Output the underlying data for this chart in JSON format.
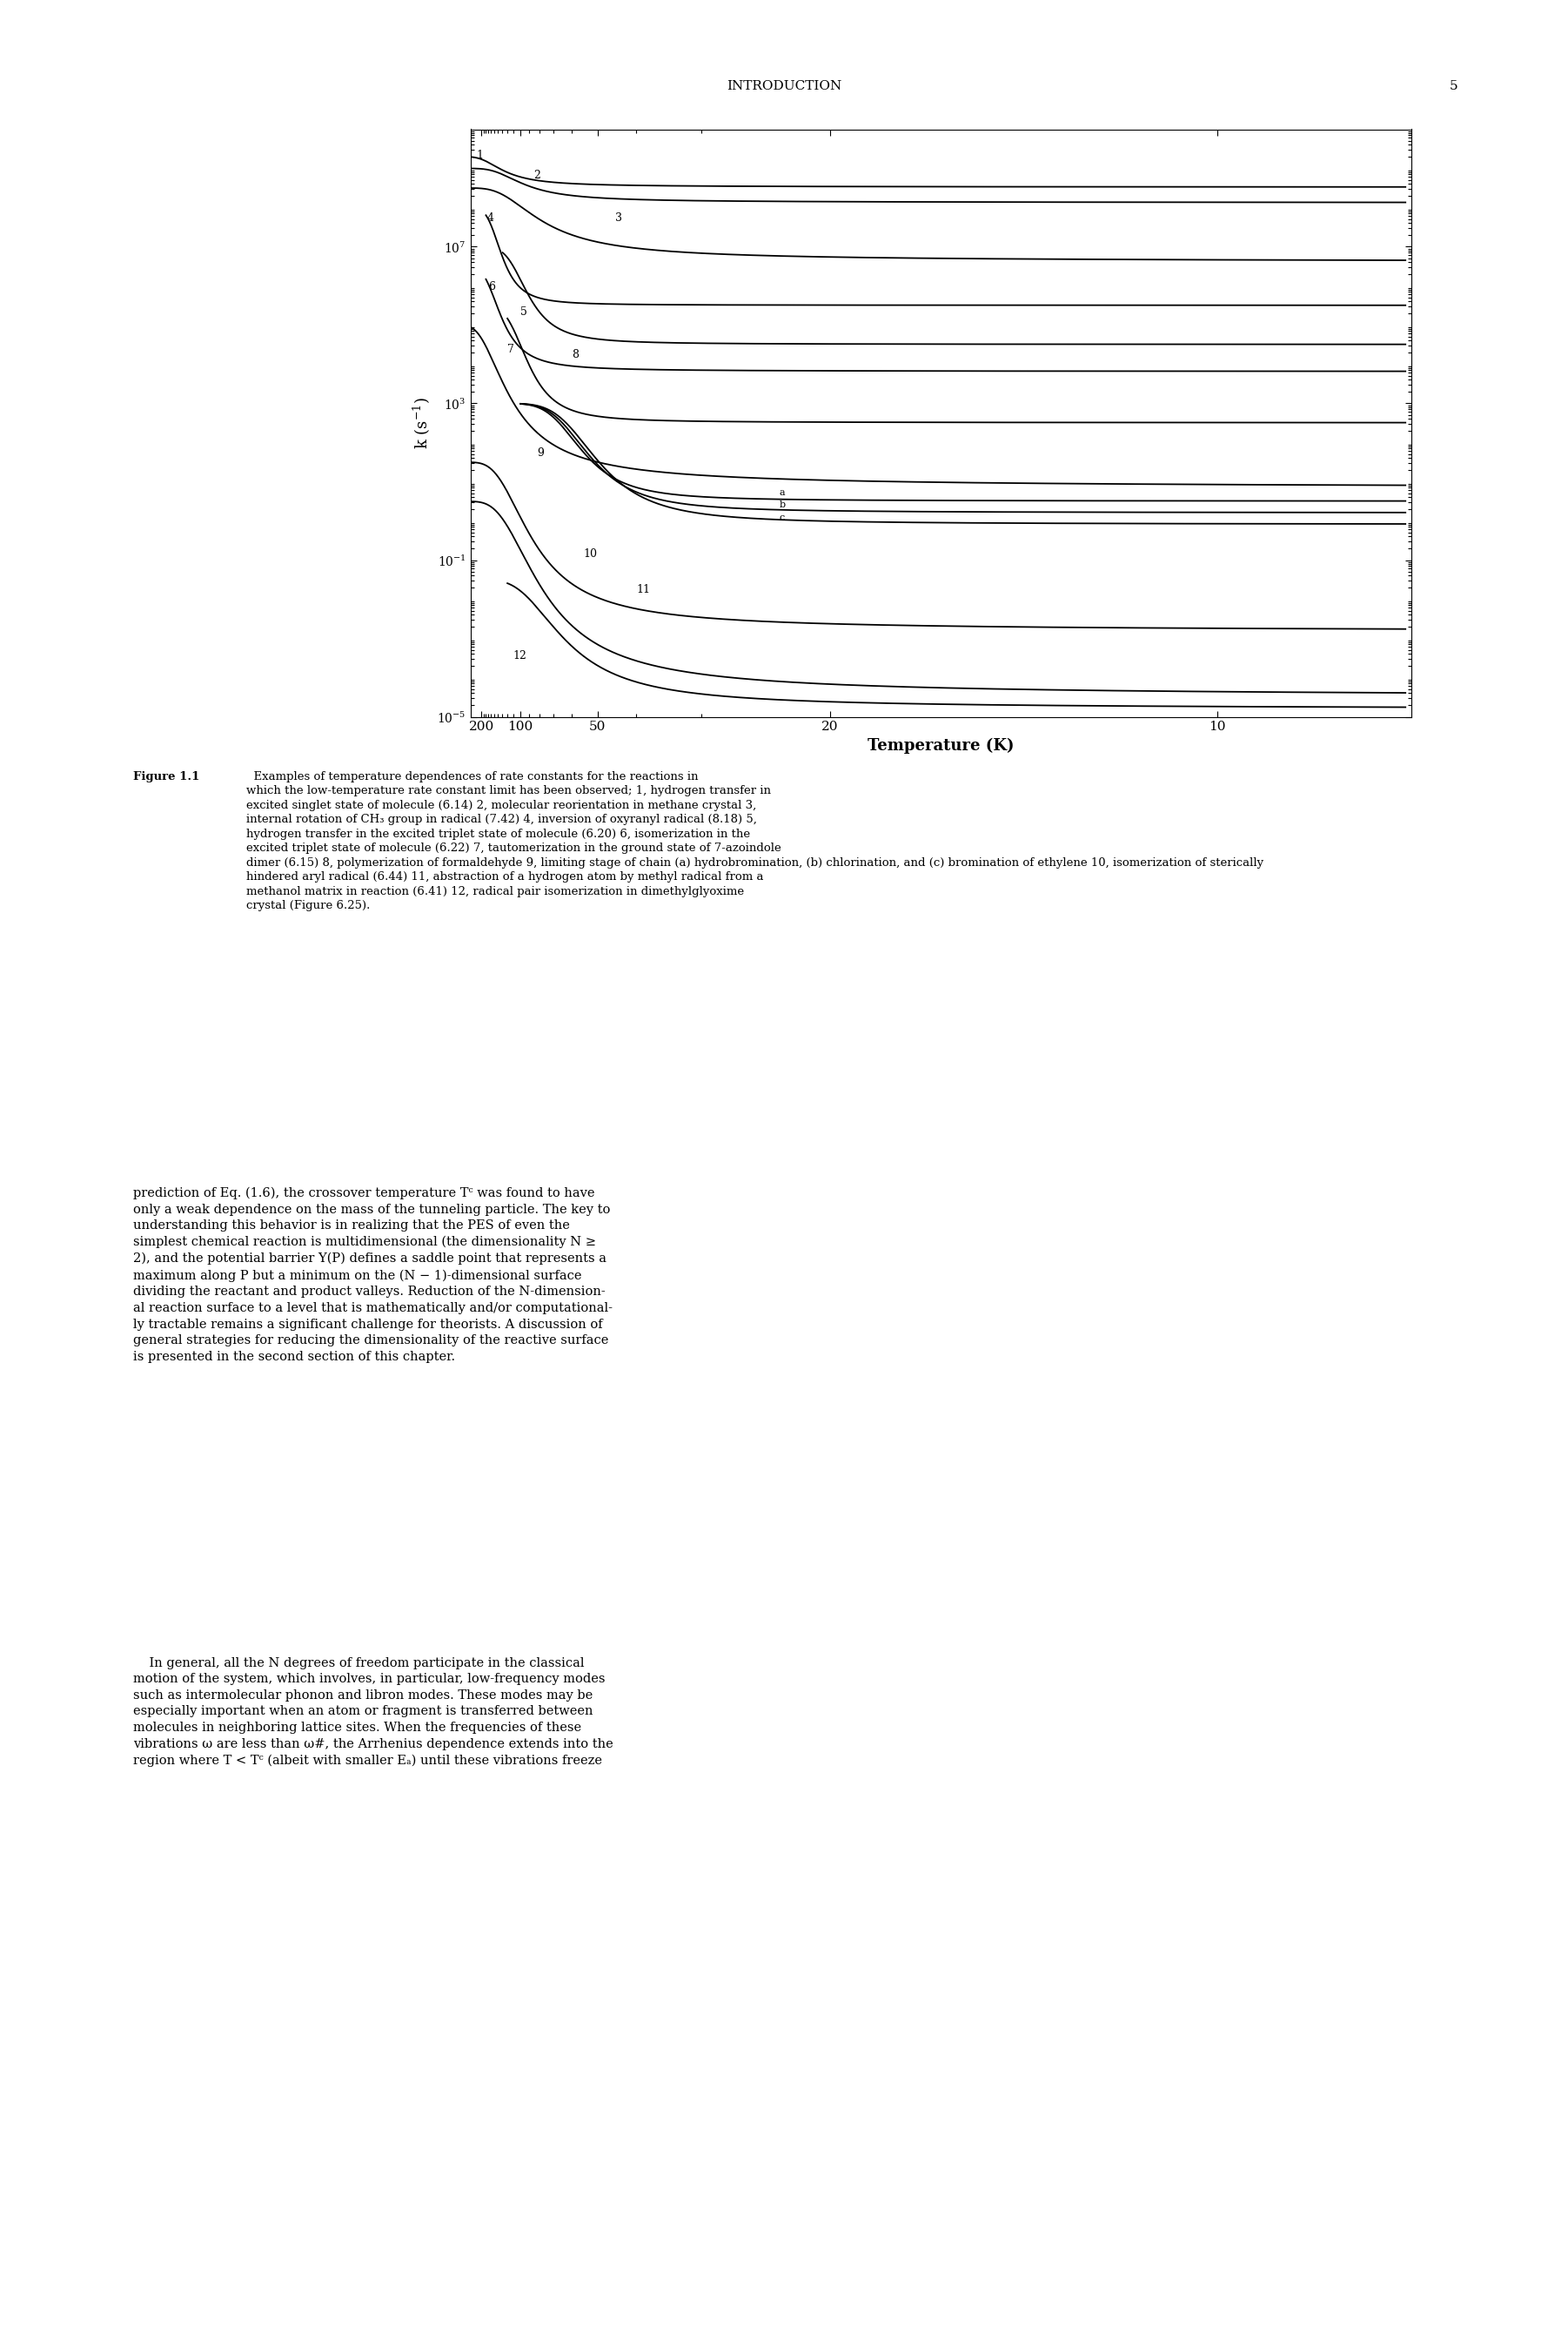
{
  "title": "INTRODUCTION",
  "page_number": "5",
  "xlabel": "Temperature (K)",
  "ylabel": "k (s⁻¹)",
  "background_color": "#ffffff",
  "line_color": "#000000",
  "caption_bold": "Figure 1.1",
  "caption_rest": "  Examples of temperature dependences of rate constants for the reactions in which the low-temperature rate constant limit has been observed; 1, hydrogen transfer in excited singlet state of molecule (6.14) 2, molecular reorientation in methane crystal 3, internal rotation of CH₃ group in radical (7.42) 4, inversion of oxyranyl radical (8.18) 5, hydrogen transfer in the excited triplet state of molecule (6.20) 6, isomerization in the excited triplet state of molecule (6.22) 7, tautomerization in the ground state of 7-azoindole dimer (6.15) 8, polymerization of formaldehyde 9, limiting stage of chain (a) hydrobromination, (b) chlorination, and (c) bromination of ethylene 10, isomerization of sterically hindered aryl radical (6.44) 11, abstraction of a hydrogen atom by methyl radical from a methanol matrix in reaction (6.41) 12, radical pair isomerization in dimethylglyoxime crystal (Figure 6.25).",
  "body_indent": "    ",
  "body1": "prediction of Eq. (1.6), the crossover temperature Tᶜ was found to have only a weak dependence on the mass of the tunneling particle. The key to understanding this behavior is in realizing that the PES of even the simplest chemical reaction is multidimensional (the dimensionality N ≥ 2), and the potential barrier V(Q) defines a saddle point that represents a maximum along Q but a minimum on the (N − 1)-dimensional surface dividing the reactant and product valleys. Reduction of the N-dimensional reaction surface to a level that is mathematically and/or computationally tractable remains a significant challenge for theorists. A discussion of general strategies for reducing the dimensionality of the reactive surface is presented in the second section of this chapter.",
  "body2": "    In general, all the N degrees of freedom participate in the classical motion of the system, which involves, in particular, low-frequency modes such as intermolecular phonon and libron modes. These modes may be especially important when an atom or fragment is transferred between molecules in neighboring lattice sites. When the frequencies of these vibrations ω are less than ω⁠⁠⁠#, the Arrhenius dependence extends into the region where T < Tᶜ (albeit with smaller Eₐ) until these vibrations freeze"
}
